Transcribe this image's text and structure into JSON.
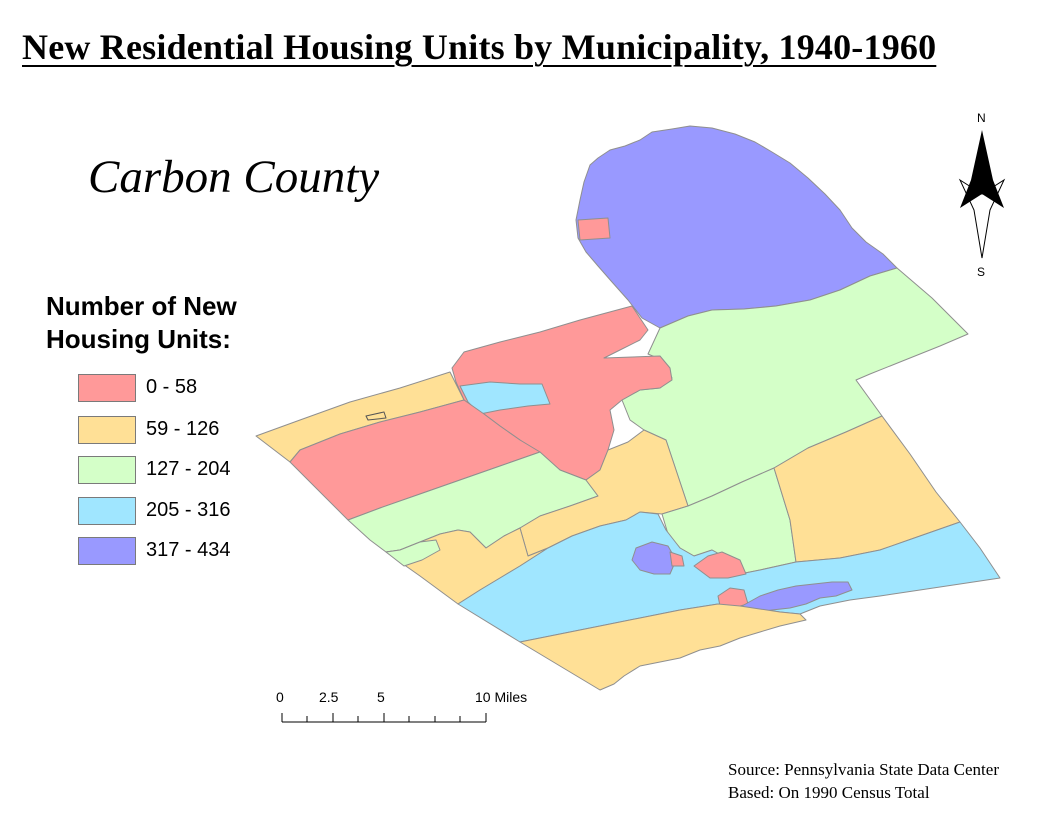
{
  "title": "New Residential Housing Units by Municipality, 1940-1960",
  "county_label": "Carbon County",
  "legend": {
    "title_line1": "Number of New",
    "title_line2": "Housing Units:",
    "classes": [
      {
        "label": "0 - 58",
        "color": "#ff9999"
      },
      {
        "label": "59 - 126",
        "color": "#ffe096"
      },
      {
        "label": "127 - 204",
        "color": "#d4ffc8"
      },
      {
        "label": "205 - 316",
        "color": "#a0e6ff"
      },
      {
        "label": "317 - 434",
        "color": "#9999ff"
      }
    ]
  },
  "north_arrow": {
    "n_label": "N",
    "s_label": "S"
  },
  "scale_bar": {
    "ticks": [
      "0",
      "2.5",
      "5",
      "10 Miles"
    ]
  },
  "source": {
    "line1": "Source: Pennsylvania State Data Center",
    "line2": "Based: On 1990 Census Total"
  }
}
